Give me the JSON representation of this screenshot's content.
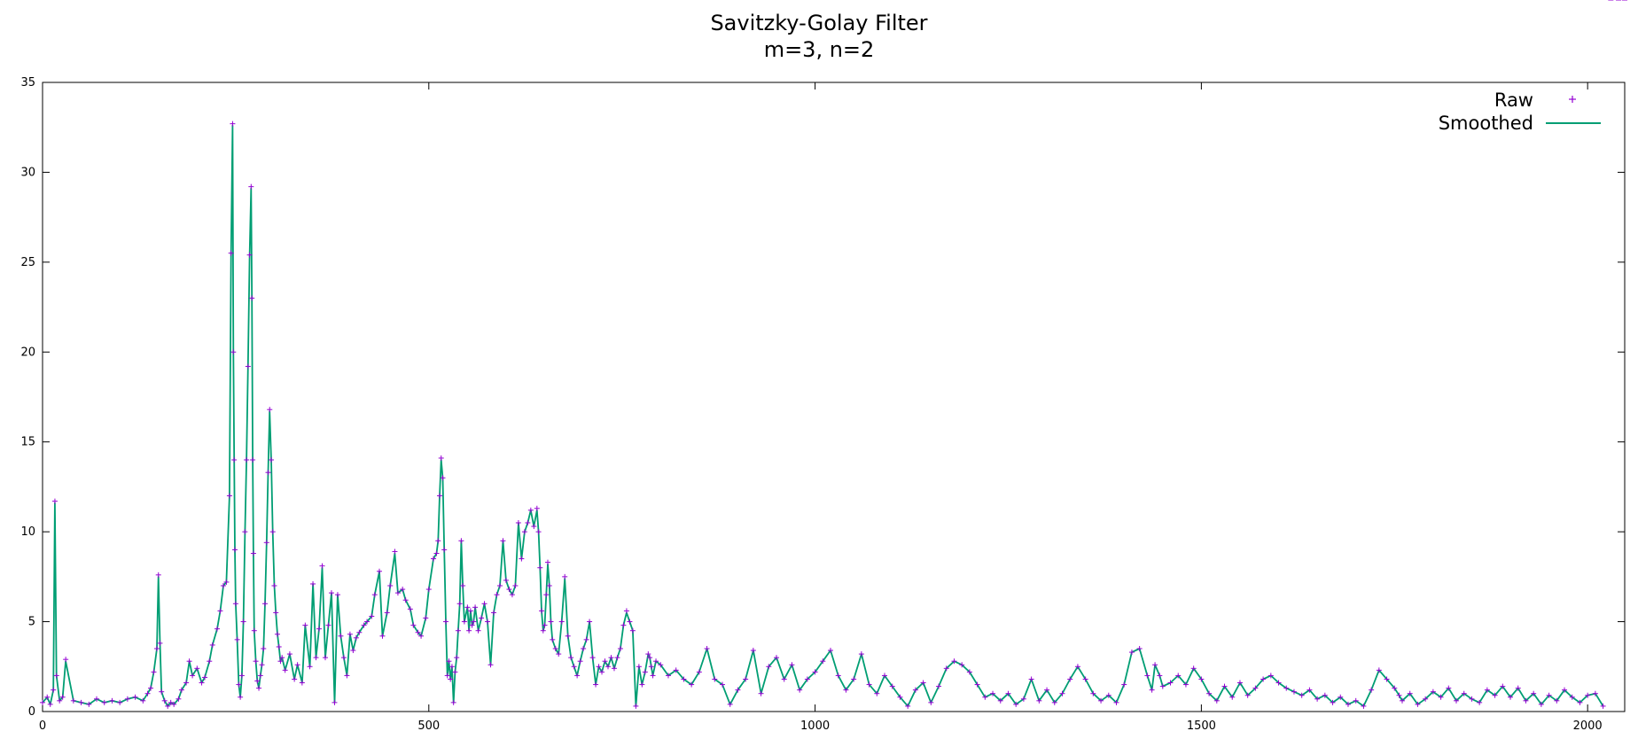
{
  "chart_data": {
    "type": "line",
    "title": "Savitzky-Golay Filter",
    "subtitle": "m=3, n=2",
    "xlabel": "",
    "ylabel": "",
    "xlim": [
      0,
      2048
    ],
    "ylim": [
      0,
      35
    ],
    "xticks": [
      0,
      500,
      1000,
      1500,
      2000
    ],
    "yticks": [
      0,
      5,
      10,
      15,
      20,
      25,
      30,
      35
    ],
    "grid": false,
    "legend_position": "top-right",
    "series": [
      {
        "name": "Raw",
        "style": "points",
        "marker": "+",
        "color": "#9400d3"
      },
      {
        "name": "Smoothed",
        "style": "line",
        "color": "#009e73"
      }
    ],
    "x": [
      0,
      6,
      10,
      14,
      16,
      18,
      22,
      26,
      30,
      40,
      50,
      60,
      70,
      80,
      90,
      100,
      110,
      120,
      130,
      136,
      140,
      144,
      148,
      150,
      152,
      154,
      158,
      162,
      166,
      170,
      176,
      180,
      186,
      190,
      194,
      200,
      206,
      210,
      216,
      220,
      226,
      230,
      234,
      238,
      242,
      244,
      246,
      247,
      248,
      249,
      250,
      252,
      254,
      256,
      258,
      260,
      262,
      264,
      266,
      268,
      270,
      271,
      272,
      273,
      274,
      276,
      278,
      280,
      282,
      284,
      286,
      288,
      290,
      292,
      294,
      296,
      298,
      300,
      302,
      304,
      306,
      308,
      310,
      314,
      320,
      326,
      330,
      336,
      340,
      346,
      350,
      354,
      358,
      362,
      366,
      370,
      374,
      378,
      382,
      386,
      390,
      394,
      398,
      402,
      406,
      410,
      416,
      420,
      426,
      430,
      436,
      440,
      446,
      450,
      456,
      460,
      466,
      470,
      476,
      480,
      486,
      490,
      496,
      500,
      506,
      510,
      512,
      514,
      516,
      518,
      520,
      522,
      524,
      526,
      528,
      530,
      532,
      534,
      536,
      538,
      540,
      542,
      544,
      546,
      550,
      552,
      554,
      556,
      558,
      560,
      564,
      568,
      572,
      576,
      580,
      584,
      588,
      592,
      596,
      600,
      604,
      608,
      612,
      616,
      620,
      624,
      628,
      632,
      636,
      640,
      642,
      644,
      646,
      648,
      650,
      652,
      654,
      656,
      658,
      660,
      664,
      668,
      672,
      676,
      680,
      684,
      688,
      692,
      696,
      700,
      704,
      708,
      712,
      716,
      720,
      724,
      728,
      732,
      736,
      740,
      744,
      748,
      752,
      756,
      760,
      764,
      768,
      772,
      776,
      780,
      784,
      786,
      788,
      790,
      794,
      800,
      810,
      820,
      830,
      840,
      850,
      860,
      870,
      880,
      890,
      900,
      910,
      920,
      930,
      940,
      950,
      960,
      970,
      980,
      990,
      1000,
      1010,
      1020,
      1030,
      1040,
      1050,
      1060,
      1070,
      1080,
      1090,
      1100,
      1110,
      1120,
      1130,
      1140,
      1150,
      1160,
      1170,
      1180,
      1190,
      1200,
      1210,
      1220,
      1230,
      1240,
      1250,
      1260,
      1270,
      1280,
      1290,
      1300,
      1310,
      1320,
      1330,
      1340,
      1350,
      1360,
      1370,
      1380,
      1390,
      1400,
      1410,
      1420,
      1430,
      1436,
      1440,
      1446,
      1450,
      1460,
      1470,
      1480,
      1490,
      1500,
      1510,
      1520,
      1530,
      1540,
      1550,
      1560,
      1570,
      1580,
      1590,
      1600,
      1610,
      1620,
      1630,
      1640,
      1650,
      1660,
      1670,
      1680,
      1690,
      1700,
      1710,
      1720,
      1730,
      1740,
      1750,
      1756,
      1760,
      1770,
      1780,
      1790,
      1800,
      1810,
      1820,
      1830,
      1840,
      1850,
      1860,
      1870,
      1880,
      1890,
      1900,
      1910,
      1920,
      1930,
      1940,
      1950,
      1960,
      1970,
      1980,
      1990,
      2000,
      2010,
      2020,
      2030,
      2040,
      2048
    ],
    "raw": [
      0.5,
      0.8,
      0.4,
      1.2,
      11.7,
      2.0,
      0.6,
      0.8,
      2.9,
      0.6,
      0.5,
      0.4,
      0.7,
      0.5,
      0.6,
      0.5,
      0.7,
      0.8,
      0.6,
      1.0,
      1.3,
      2.2,
      3.5,
      7.6,
      3.8,
      1.1,
      0.6,
      0.3,
      0.5,
      0.4,
      0.7,
      1.2,
      1.6,
      2.8,
      2.0,
      2.4,
      1.6,
      1.9,
      2.8,
      3.7,
      4.6,
      5.6,
      7.0,
      7.2,
      12.0,
      25.5,
      32.7,
      20.0,
      14.0,
      9.0,
      6.0,
      4.0,
      1.5,
      0.8,
      2.0,
      5.0,
      10.0,
      14.0,
      19.2,
      25.4,
      29.2,
      23.0,
      14.0,
      8.8,
      4.5,
      2.8,
      1.7,
      1.3,
      2.0,
      2.6,
      3.5,
      6.0,
      9.4,
      13.3,
      16.8,
      14.0,
      10.0,
      7.0,
      5.5,
      4.3,
      3.6,
      2.8,
      3.0,
      2.3,
      3.2,
      1.8,
      2.6,
      1.6,
      4.8,
      2.5,
      7.1,
      3.0,
      4.6,
      8.1,
      3.0,
      4.8,
      6.6,
      0.5,
      6.5,
      4.2,
      3.0,
      2.0,
      4.3,
      3.4,
      4.1,
      4.4,
      4.8,
      5.0,
      5.3,
      6.5,
      7.8,
      4.2,
      5.5,
      7.0,
      8.9,
      6.6,
      6.8,
      6.2,
      5.7,
      4.8,
      4.4,
      4.2,
      5.2,
      6.8,
      8.5,
      8.8,
      9.5,
      12.0,
      14.1,
      13.0,
      9.0,
      5.0,
      2.0,
      2.8,
      1.8,
      2.5,
      0.5,
      2.2,
      3.0,
      4.5,
      6.0,
      9.5,
      7.0,
      5.0,
      5.8,
      4.5,
      5.6,
      4.8,
      5.0,
      5.8,
      4.5,
      5.2,
      6.0,
      5.0,
      2.6,
      5.5,
      6.5,
      7.0,
      9.5,
      7.3,
      6.8,
      6.5,
      7.0,
      10.5,
      8.5,
      10.0,
      10.5,
      11.2,
      10.3,
      11.3,
      10.0,
      8.0,
      5.6,
      4.5,
      4.8,
      6.5,
      8.3,
      7.0,
      5.0,
      4.0,
      3.5,
      3.2,
      5.0,
      7.5,
      4.2,
      3.0,
      2.5,
      2.0,
      2.8,
      3.5,
      4.0,
      5.0,
      3.0,
      1.5,
      2.5,
      2.2,
      2.8,
      2.5,
      3.0,
      2.4,
      3.0,
      3.5,
      4.8,
      5.6,
      5.0,
      4.5,
      0.3,
      2.5,
      1.5,
      2.2,
      3.2,
      3.0,
      2.5,
      2.0,
      2.8,
      2.6,
      2.0,
      2.3,
      1.8,
      1.5,
      2.2,
      3.5,
      1.8,
      1.5,
      0.4,
      1.2,
      1.8,
      3.4,
      1.0,
      2.5,
      3.0,
      1.8,
      2.6,
      1.2,
      1.8,
      2.2,
      2.8,
      3.4,
      2.0,
      1.2,
      1.8,
      3.2,
      1.5,
      1.0,
      2.0,
      1.4,
      0.8,
      0.3,
      1.2,
      1.6,
      0.5,
      1.4,
      2.4,
      2.8,
      2.6,
      2.2,
      1.5,
      0.8,
      1.0,
      0.6,
      1.0,
      0.4,
      0.7,
      1.8,
      0.6,
      1.2,
      0.5,
      1.0,
      1.8,
      2.5,
      1.8,
      1.0,
      0.6,
      0.9,
      0.5,
      1.5,
      3.3,
      3.5,
      2.0,
      1.2,
      2.6,
      2.0,
      1.4,
      1.6,
      2.0,
      1.5,
      2.4,
      1.8,
      1.0,
      0.6,
      1.4,
      0.8,
      1.6,
      0.9,
      1.3,
      1.8,
      2.0,
      1.6,
      1.3,
      1.1,
      0.9,
      1.2,
      0.7,
      0.9,
      0.5,
      0.8,
      0.4,
      0.6,
      0.3,
      1.2,
      2.3,
      1.8,
      1.3,
      0.9,
      0.6,
      1.0,
      0.4,
      0.7,
      1.1,
      0.8,
      1.3,
      0.6,
      1.0,
      0.7,
      0.5,
      1.2,
      0.9,
      1.4,
      0.8,
      1.3,
      0.6,
      1.0,
      0.4,
      0.9,
      0.6,
      1.2,
      0.8,
      0.5,
      0.9,
      1.0,
      0.3
    ],
    "smoothed": [
      0.5,
      0.8,
      0.4,
      1.2,
      11.6,
      2.0,
      0.6,
      0.8,
      2.8,
      0.6,
      0.5,
      0.4,
      0.7,
      0.5,
      0.6,
      0.5,
      0.7,
      0.8,
      0.6,
      1.0,
      1.3,
      2.2,
      3.5,
      7.5,
      3.8,
      1.1,
      0.6,
      0.3,
      0.5,
      0.4,
      0.7,
      1.2,
      1.6,
      2.8,
      2.0,
      2.4,
      1.6,
      1.9,
      2.8,
      3.7,
      4.6,
      5.6,
      7.0,
      7.2,
      12.0,
      25.4,
      32.6,
      20.0,
      14.0,
      9.0,
      6.0,
      4.0,
      1.5,
      0.8,
      2.0,
      5.0,
      10.0,
      14.0,
      19.2,
      25.3,
      29.1,
      23.0,
      14.0,
      8.8,
      4.5,
      2.8,
      1.7,
      1.3,
      2.0,
      2.6,
      3.5,
      6.0,
      9.4,
      13.3,
      16.7,
      14.0,
      10.0,
      7.0,
      5.5,
      4.3,
      3.6,
      2.8,
      3.0,
      2.3,
      3.2,
      1.8,
      2.6,
      1.6,
      4.8,
      2.5,
      7.1,
      3.0,
      4.6,
      8.0,
      3.0,
      4.8,
      6.6,
      0.5,
      6.5,
      4.2,
      3.0,
      2.0,
      4.3,
      3.4,
      4.1,
      4.4,
      4.8,
      5.0,
      5.3,
      6.5,
      7.8,
      4.2,
      5.5,
      7.0,
      8.8,
      6.6,
      6.8,
      6.2,
      5.7,
      4.8,
      4.4,
      4.2,
      5.2,
      6.8,
      8.5,
      8.8,
      9.5,
      12.0,
      14.0,
      13.0,
      9.0,
      5.0,
      2.0,
      2.8,
      1.8,
      2.5,
      0.5,
      2.2,
      3.0,
      4.5,
      6.0,
      9.5,
      7.0,
      5.0,
      5.8,
      4.5,
      5.6,
      4.8,
      5.0,
      5.8,
      4.5,
      5.2,
      6.0,
      5.0,
      2.6,
      5.5,
      6.5,
      7.0,
      9.5,
      7.3,
      6.8,
      6.5,
      7.0,
      10.5,
      8.5,
      10.0,
      10.5,
      11.2,
      10.3,
      11.2,
      10.0,
      8.0,
      5.6,
      4.5,
      4.8,
      6.5,
      8.2,
      7.0,
      5.0,
      4.0,
      3.5,
      3.2,
      5.0,
      7.4,
      4.2,
      3.0,
      2.5,
      2.0,
      2.8,
      3.5,
      4.0,
      5.0,
      3.0,
      1.5,
      2.5,
      2.2,
      2.8,
      2.5,
      3.0,
      2.4,
      3.0,
      3.5,
      4.8,
      5.5,
      5.0,
      4.5,
      0.3,
      2.5,
      1.5,
      2.2,
      3.2,
      3.0,
      2.5,
      2.0,
      2.8,
      2.6,
      2.0,
      2.3,
      1.8,
      1.5,
      2.2,
      3.5,
      1.8,
      1.5,
      0.4,
      1.2,
      1.8,
      3.4,
      1.0,
      2.5,
      3.0,
      1.8,
      2.6,
      1.2,
      1.8,
      2.2,
      2.8,
      3.4,
      2.0,
      1.2,
      1.8,
      3.2,
      1.5,
      1.0,
      2.0,
      1.4,
      0.8,
      0.3,
      1.2,
      1.6,
      0.5,
      1.4,
      2.4,
      2.8,
      2.6,
      2.2,
      1.5,
      0.8,
      1.0,
      0.6,
      1.0,
      0.4,
      0.7,
      1.8,
      0.6,
      1.2,
      0.5,
      1.0,
      1.8,
      2.5,
      1.8,
      1.0,
      0.6,
      0.9,
      0.5,
      1.5,
      3.3,
      3.5,
      2.0,
      1.2,
      2.6,
      2.0,
      1.4,
      1.6,
      2.0,
      1.5,
      2.4,
      1.8,
      1.0,
      0.6,
      1.4,
      0.8,
      1.6,
      0.9,
      1.3,
      1.8,
      2.0,
      1.6,
      1.3,
      1.1,
      0.9,
      1.2,
      0.7,
      0.9,
      0.5,
      0.8,
      0.4,
      0.6,
      0.3,
      1.2,
      2.3,
      1.8,
      1.3,
      0.9,
      0.6,
      1.0,
      0.4,
      0.7,
      1.1,
      0.8,
      1.3,
      0.6,
      1.0,
      0.7,
      0.5,
      1.2,
      0.9,
      1.4,
      0.8,
      1.3,
      0.6,
      1.0,
      0.4,
      0.9,
      0.6,
      1.2,
      0.8,
      0.5,
      0.9,
      1.0,
      0.3
    ]
  }
}
